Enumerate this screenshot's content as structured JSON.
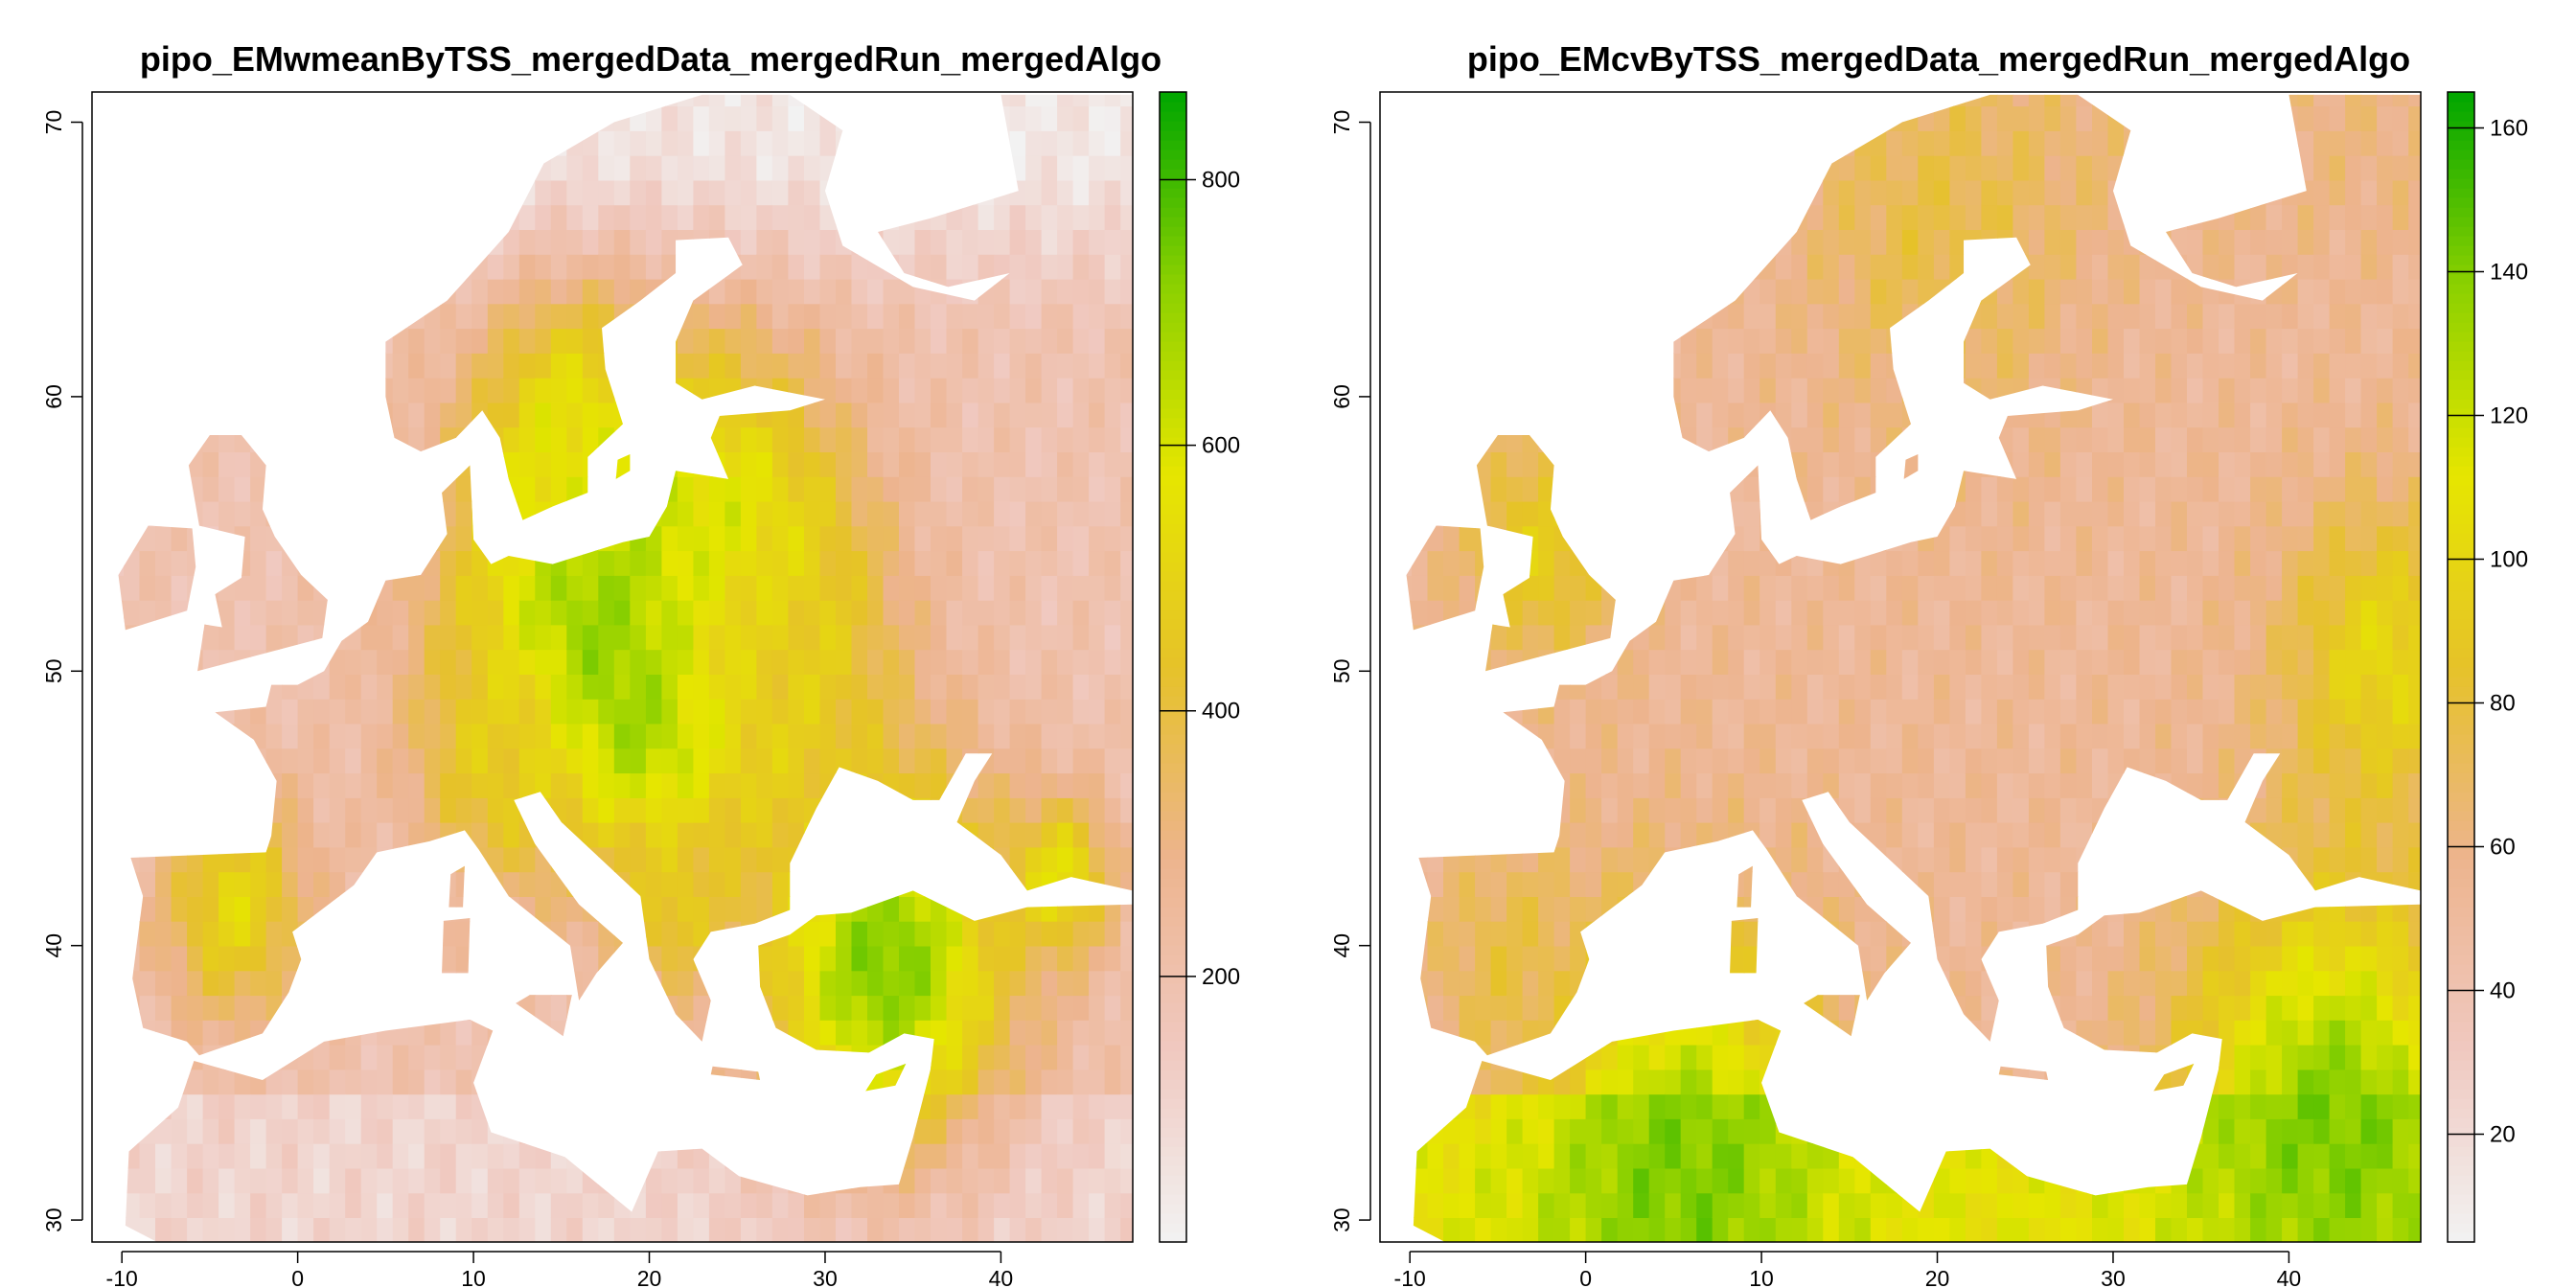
{
  "chart_data": [
    {
      "type": "heatmap",
      "title": "pipo_EMwmeanByTSS_mergedData_mergedRun_mergedAlgo",
      "x_ticks": [
        -10,
        0,
        10,
        20,
        30,
        40
      ],
      "y_ticks": [
        30,
        40,
        50,
        60,
        70
      ],
      "xlim": [
        -11.7,
        47.5
      ],
      "ylim": [
        29.2,
        71.1
      ],
      "colorbar": {
        "ticks": [
          200,
          400,
          600,
          800
        ],
        "range": [
          0,
          866
        ]
      },
      "palette": [
        "#f2f2f2",
        "#f0c9c0",
        "#edb48e",
        "#e6c229",
        "#e6e600",
        "#8bd000",
        "#00a600"
      ],
      "hotspots": [
        {
          "lon": 17,
          "lat": 52,
          "level": 0.88,
          "r": 6
        },
        {
          "lon": 20,
          "lat": 49,
          "level": 0.9,
          "r": 3
        },
        {
          "lon": 24,
          "lat": 53,
          "level": 0.75,
          "r": 5
        },
        {
          "lon": 33,
          "lat": 39,
          "level": 0.85,
          "r": 5
        },
        {
          "lon": -4,
          "lat": 41,
          "level": 0.6,
          "r": 3
        },
        {
          "lon": 11,
          "lat": 46.5,
          "level": 0.55,
          "r": 3
        },
        {
          "lon": 15,
          "lat": 58,
          "level": 0.65,
          "r": 3
        },
        {
          "lon": 27,
          "lat": 50,
          "level": 0.55,
          "r": 4
        },
        {
          "lon": 43,
          "lat": 42,
          "level": 0.65,
          "r": 2
        },
        {
          "lon": 21,
          "lat": 41,
          "level": 0.55,
          "r": 2
        }
      ],
      "base_level": 0.22,
      "north_level": 0.05,
      "sahara_level": 0.12
    },
    {
      "type": "heatmap",
      "title": "pipo_EMcvByTSS_mergedData_mergedRun_mergedAlgo",
      "x_ticks": [
        -10,
        0,
        10,
        20,
        30,
        40
      ],
      "y_ticks": [
        30,
        40,
        50,
        60,
        70
      ],
      "xlim": [
        -11.7,
        47.5
      ],
      "ylim": [
        29.2,
        71.1
      ],
      "colorbar": {
        "ticks": [
          20,
          40,
          60,
          80,
          100,
          120,
          140,
          160
        ],
        "range": [
          5,
          165
        ]
      },
      "palette": [
        "#f2f2f2",
        "#f0c9c0",
        "#edb48e",
        "#e6c229",
        "#e6e600",
        "#8bd000",
        "#00a600"
      ],
      "hotspots": [
        {
          "lon": 5,
          "lat": 31,
          "level": 0.85,
          "r": 6
        },
        {
          "lon": 42,
          "lat": 33,
          "level": 0.85,
          "r": 6
        },
        {
          "lon": 45,
          "lat": 50,
          "level": 0.6,
          "r": 4
        },
        {
          "lon": -3,
          "lat": 54,
          "level": 0.55,
          "r": 3
        },
        {
          "lon": 20,
          "lat": 65,
          "level": 0.45,
          "r": 5
        },
        {
          "lon": -5,
          "lat": 39,
          "level": 0.45,
          "r": 3
        }
      ],
      "base_level": 0.3,
      "north_level": 0.35,
      "sahara_level": 0.65
    }
  ]
}
